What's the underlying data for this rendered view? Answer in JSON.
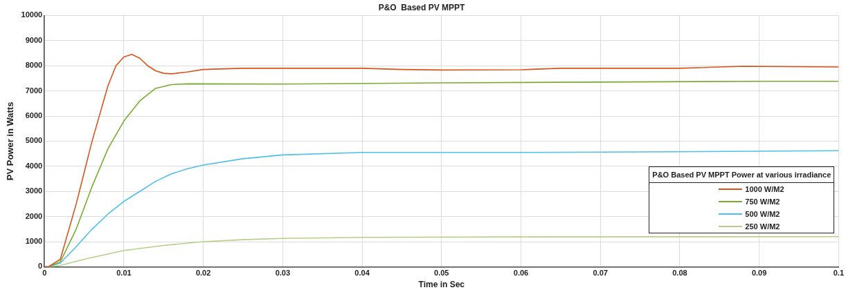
{
  "chart_data": {
    "type": "line",
    "title": "P&O  Based PV MPPT",
    "xlabel": "Time in Sec",
    "ylabel": "PV Power in Watts",
    "legend_title": "P&O Based PV MPPT Power at various irradiance",
    "legend": "bottom right",
    "grid": true,
    "marker": "none",
    "line_style": "solid",
    "xlim": [
      0,
      0.1
    ],
    "xticks": [
      0,
      0.01,
      0.02,
      0.03,
      0.04,
      0.05,
      0.06,
      0.07,
      0.08,
      0.09,
      0.1
    ],
    "ylim": [
      0,
      10000
    ],
    "yticks": [
      0,
      1000,
      2000,
      3000,
      4000,
      5000,
      6000,
      7000,
      8000,
      9000,
      10000
    ],
    "series": [
      {
        "name": "1000 W/M2",
        "color": "#d95319",
        "x": [
          0,
          0.0005,
          0.002,
          0.004,
          0.006,
          0.008,
          0.009,
          0.01,
          0.011,
          0.012,
          0.013,
          0.014,
          0.015,
          0.016,
          0.018,
          0.02,
          0.025,
          0.03,
          0.04,
          0.045,
          0.05,
          0.06,
          0.065,
          0.07,
          0.08,
          0.088,
          0.1
        ],
        "values": [
          0,
          0,
          300,
          2500,
          5000,
          7200,
          8000,
          8350,
          8450,
          8300,
          8000,
          7800,
          7700,
          7680,
          7750,
          7850,
          7900,
          7900,
          7900,
          7850,
          7830,
          7840,
          7900,
          7900,
          7900,
          7980,
          7950
        ]
      },
      {
        "name": "750 W/M2",
        "color": "#77ac30",
        "x": [
          0.0005,
          0.002,
          0.004,
          0.006,
          0.008,
          0.01,
          0.012,
          0.014,
          0.016,
          0.018,
          0.03,
          0.05,
          0.07,
          0.09,
          0.1
        ],
        "values": [
          0,
          200,
          1500,
          3200,
          4700,
          5800,
          6600,
          7100,
          7250,
          7280,
          7270,
          7320,
          7350,
          7380,
          7380
        ]
      },
      {
        "name": "500 W/M2",
        "color": "#4dbeee",
        "x": [
          0.0005,
          0.002,
          0.004,
          0.006,
          0.008,
          0.01,
          0.012,
          0.014,
          0.016,
          0.018,
          0.02,
          0.025,
          0.03,
          0.04,
          0.05,
          0.06,
          0.08,
          0.1
        ],
        "values": [
          0,
          150,
          800,
          1500,
          2100,
          2600,
          3000,
          3400,
          3700,
          3900,
          4050,
          4300,
          4450,
          4550,
          4550,
          4550,
          4580,
          4620
        ]
      },
      {
        "name": "250 W/M2",
        "color": "#b5cf8a",
        "x": [
          0.0005,
          0.002,
          0.005,
          0.01,
          0.015,
          0.02,
          0.025,
          0.03,
          0.04,
          0.06,
          0.1
        ],
        "values": [
          0,
          50,
          300,
          650,
          850,
          1000,
          1080,
          1130,
          1170,
          1190,
          1200
        ]
      }
    ]
  }
}
